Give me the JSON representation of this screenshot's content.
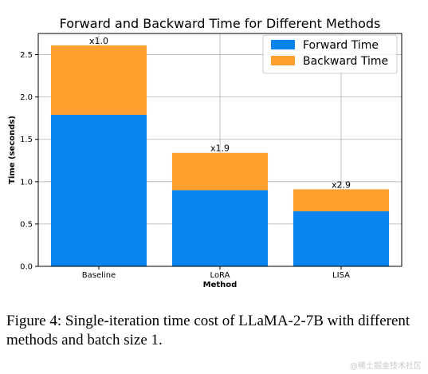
{
  "chart_data": {
    "type": "bar",
    "stacked": true,
    "title": "Forward and Backward Time for Different Methods",
    "xlabel": "Method",
    "ylabel": "Time (seconds)",
    "categories": [
      "Baseline",
      "LoRA",
      "LISA"
    ],
    "series": [
      {
        "name": "Forward Time",
        "color": "#0a84ef",
        "values": [
          1.79,
          0.9,
          0.65
        ]
      },
      {
        "name": "Backward Time",
        "color": "#ff9f2e",
        "values": [
          0.82,
          0.44,
          0.26
        ]
      }
    ],
    "annotations": [
      "x1.0",
      "x1.9",
      "x2.9"
    ],
    "ylim": [
      0,
      2.75
    ],
    "yticks": [
      "0.0",
      "0.5",
      "1.0",
      "1.5",
      "2.0",
      "2.5"
    ],
    "grid": true,
    "legend_position": "top-right"
  },
  "caption": "Figure 4:  Single-iteration time cost of LLaMA-2-7B with different methods and batch size 1.",
  "watermark": "@稀土掘金技术社区"
}
